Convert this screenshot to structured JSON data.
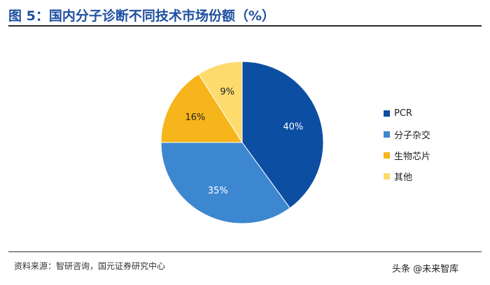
{
  "header": {
    "title": "图 5：国内分子诊断不同技术市场份额（%）"
  },
  "chart_data": {
    "type": "pie",
    "categories": [
      "PCR",
      "分子杂交",
      "生物芯片",
      "其他"
    ],
    "values": [
      40,
      35,
      16,
      9
    ],
    "labels": [
      "40%",
      "35%",
      "16%",
      "9%"
    ],
    "colors": [
      "#0c4ea2",
      "#3d87d1",
      "#f6b51b",
      "#fddb6d"
    ],
    "legend_position": "right"
  },
  "footer": {
    "source": "资料来源：智研咨询，国元证券研究中心",
    "watermark": "头条 @未来智库"
  }
}
